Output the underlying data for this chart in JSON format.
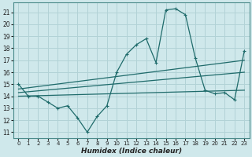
{
  "xlabel": "Humidex (Indice chaleur)",
  "xlim": [
    -0.5,
    23.5
  ],
  "ylim": [
    10.5,
    21.8
  ],
  "yticks": [
    11,
    12,
    13,
    14,
    15,
    16,
    17,
    18,
    19,
    20,
    21
  ],
  "xticks": [
    0,
    1,
    2,
    3,
    4,
    5,
    6,
    7,
    8,
    9,
    10,
    11,
    12,
    13,
    14,
    15,
    16,
    17,
    18,
    19,
    20,
    21,
    22,
    23
  ],
  "bg_color": "#cfe8eb",
  "grid_color": "#b2d2d6",
  "line_color": "#1f6b6b",
  "main_series_x": [
    0,
    1,
    2,
    3,
    4,
    5,
    6,
    7,
    8,
    9,
    10,
    11,
    12,
    13,
    14,
    15,
    16,
    17,
    18,
    19,
    20,
    21,
    22,
    23
  ],
  "main_series_y": [
    15.0,
    14.0,
    14.0,
    13.5,
    13.0,
    13.2,
    12.2,
    11.0,
    12.3,
    13.2,
    16.0,
    17.5,
    18.3,
    18.8,
    16.8,
    21.2,
    21.3,
    20.8,
    17.2,
    14.5,
    14.2,
    14.3,
    13.7,
    17.8
  ],
  "trend1_x": [
    0,
    23
  ],
  "trend1_y": [
    14.6,
    17.0
  ],
  "trend2_x": [
    0,
    23
  ],
  "trend2_y": [
    14.3,
    16.0
  ],
  "trend3_x": [
    0,
    23
  ],
  "trend3_y": [
    14.0,
    14.5
  ]
}
